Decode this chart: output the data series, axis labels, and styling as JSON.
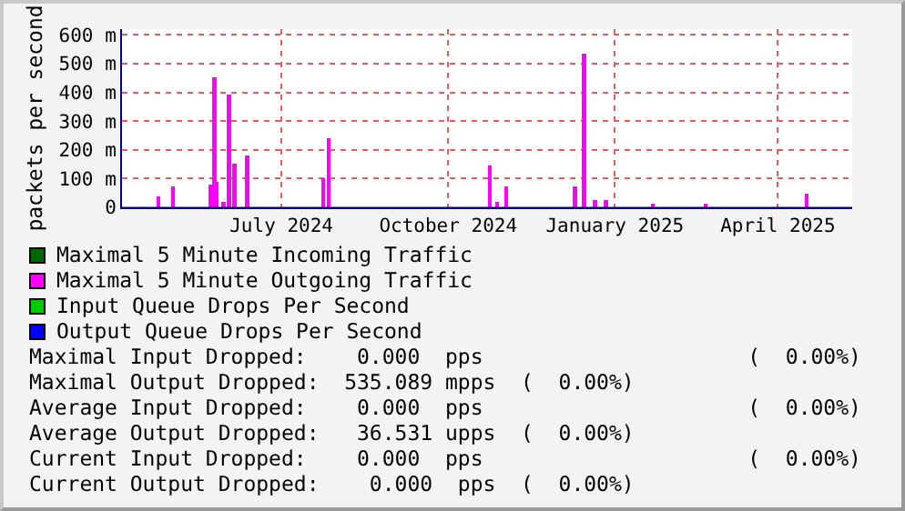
{
  "chart_data": {
    "type": "bar",
    "ylabel": "packets per second",
    "xlim": [
      "2024-04-19",
      "2025-05-27"
    ],
    "xticks": [
      {
        "value": "2024-07-16",
        "label": "July 2024"
      },
      {
        "value": "2024-10-16",
        "label": "October 2024"
      },
      {
        "value": "2025-01-16",
        "label": "January 2025"
      },
      {
        "value": "2025-04-16",
        "label": "April 2025"
      }
    ],
    "ylim": [
      0,
      620
    ],
    "yticks": [
      0,
      {
        "value": 100,
        "label": "100 m"
      },
      {
        "value": 200,
        "label": "200 m"
      },
      {
        "value": 300,
        "label": "300 m"
      },
      {
        "value": 400,
        "label": "400 m"
      },
      {
        "value": 500,
        "label": "500 m"
      },
      {
        "value": 600,
        "label": "600 m"
      }
    ],
    "grid": true,
    "legend": "bottom",
    "series": [
      {
        "name": "Maximal 5 Minute Incoming Traffic",
        "type": "line",
        "color": "#006600"
      },
      {
        "name": "Maximal 5 Minute Outgoing Traffic",
        "color": "#ff00ff",
        "x": [
          "2024-05-09",
          "2024-05-17",
          "2024-06-07",
          "2024-06-09",
          "2024-06-10",
          "2024-06-14",
          "2024-06-17",
          "2024-06-20",
          "2024-06-27",
          "2024-08-08",
          "2024-08-11",
          "2024-11-08",
          "2024-11-12",
          "2024-11-17",
          "2024-12-25",
          "2024-12-30",
          "2025-01-05",
          "2025-01-11",
          "2025-02-06",
          "2025-03-07",
          "2025-05-02"
        ],
        "values": [
          38,
          72,
          80,
          452,
          88,
          20,
          392,
          152,
          180,
          102,
          242,
          146,
          18,
          72,
          72,
          535,
          24,
          24,
          12,
          12,
          48
        ]
      },
      {
        "name": "Input Queue Drops Per Second",
        "type": "line",
        "color": "#00cc00"
      },
      {
        "name": "Output Queue Drops Per Second",
        "type": "line",
        "color": "#0000ff",
        "x": [
          "2024-04-19",
          "2025-05-27"
        ],
        "values": [
          0,
          0
        ]
      }
    ],
    "annotations": [
      "Maximal Input Dropped:    0.000  pps                     (  0.00%)",
      "Maximal Output Dropped:  535.089 mpps  (  0.00%)",
      "Average Input Dropped:    0.000  pps                     (  0.00%)",
      "Average Output Dropped:   36.531 upps  (  0.00%)",
      "Current Input Dropped:    0.000  pps                     (  0.00%)",
      "Current Output Dropped:    0.000  pps  (  0.00%)"
    ]
  }
}
